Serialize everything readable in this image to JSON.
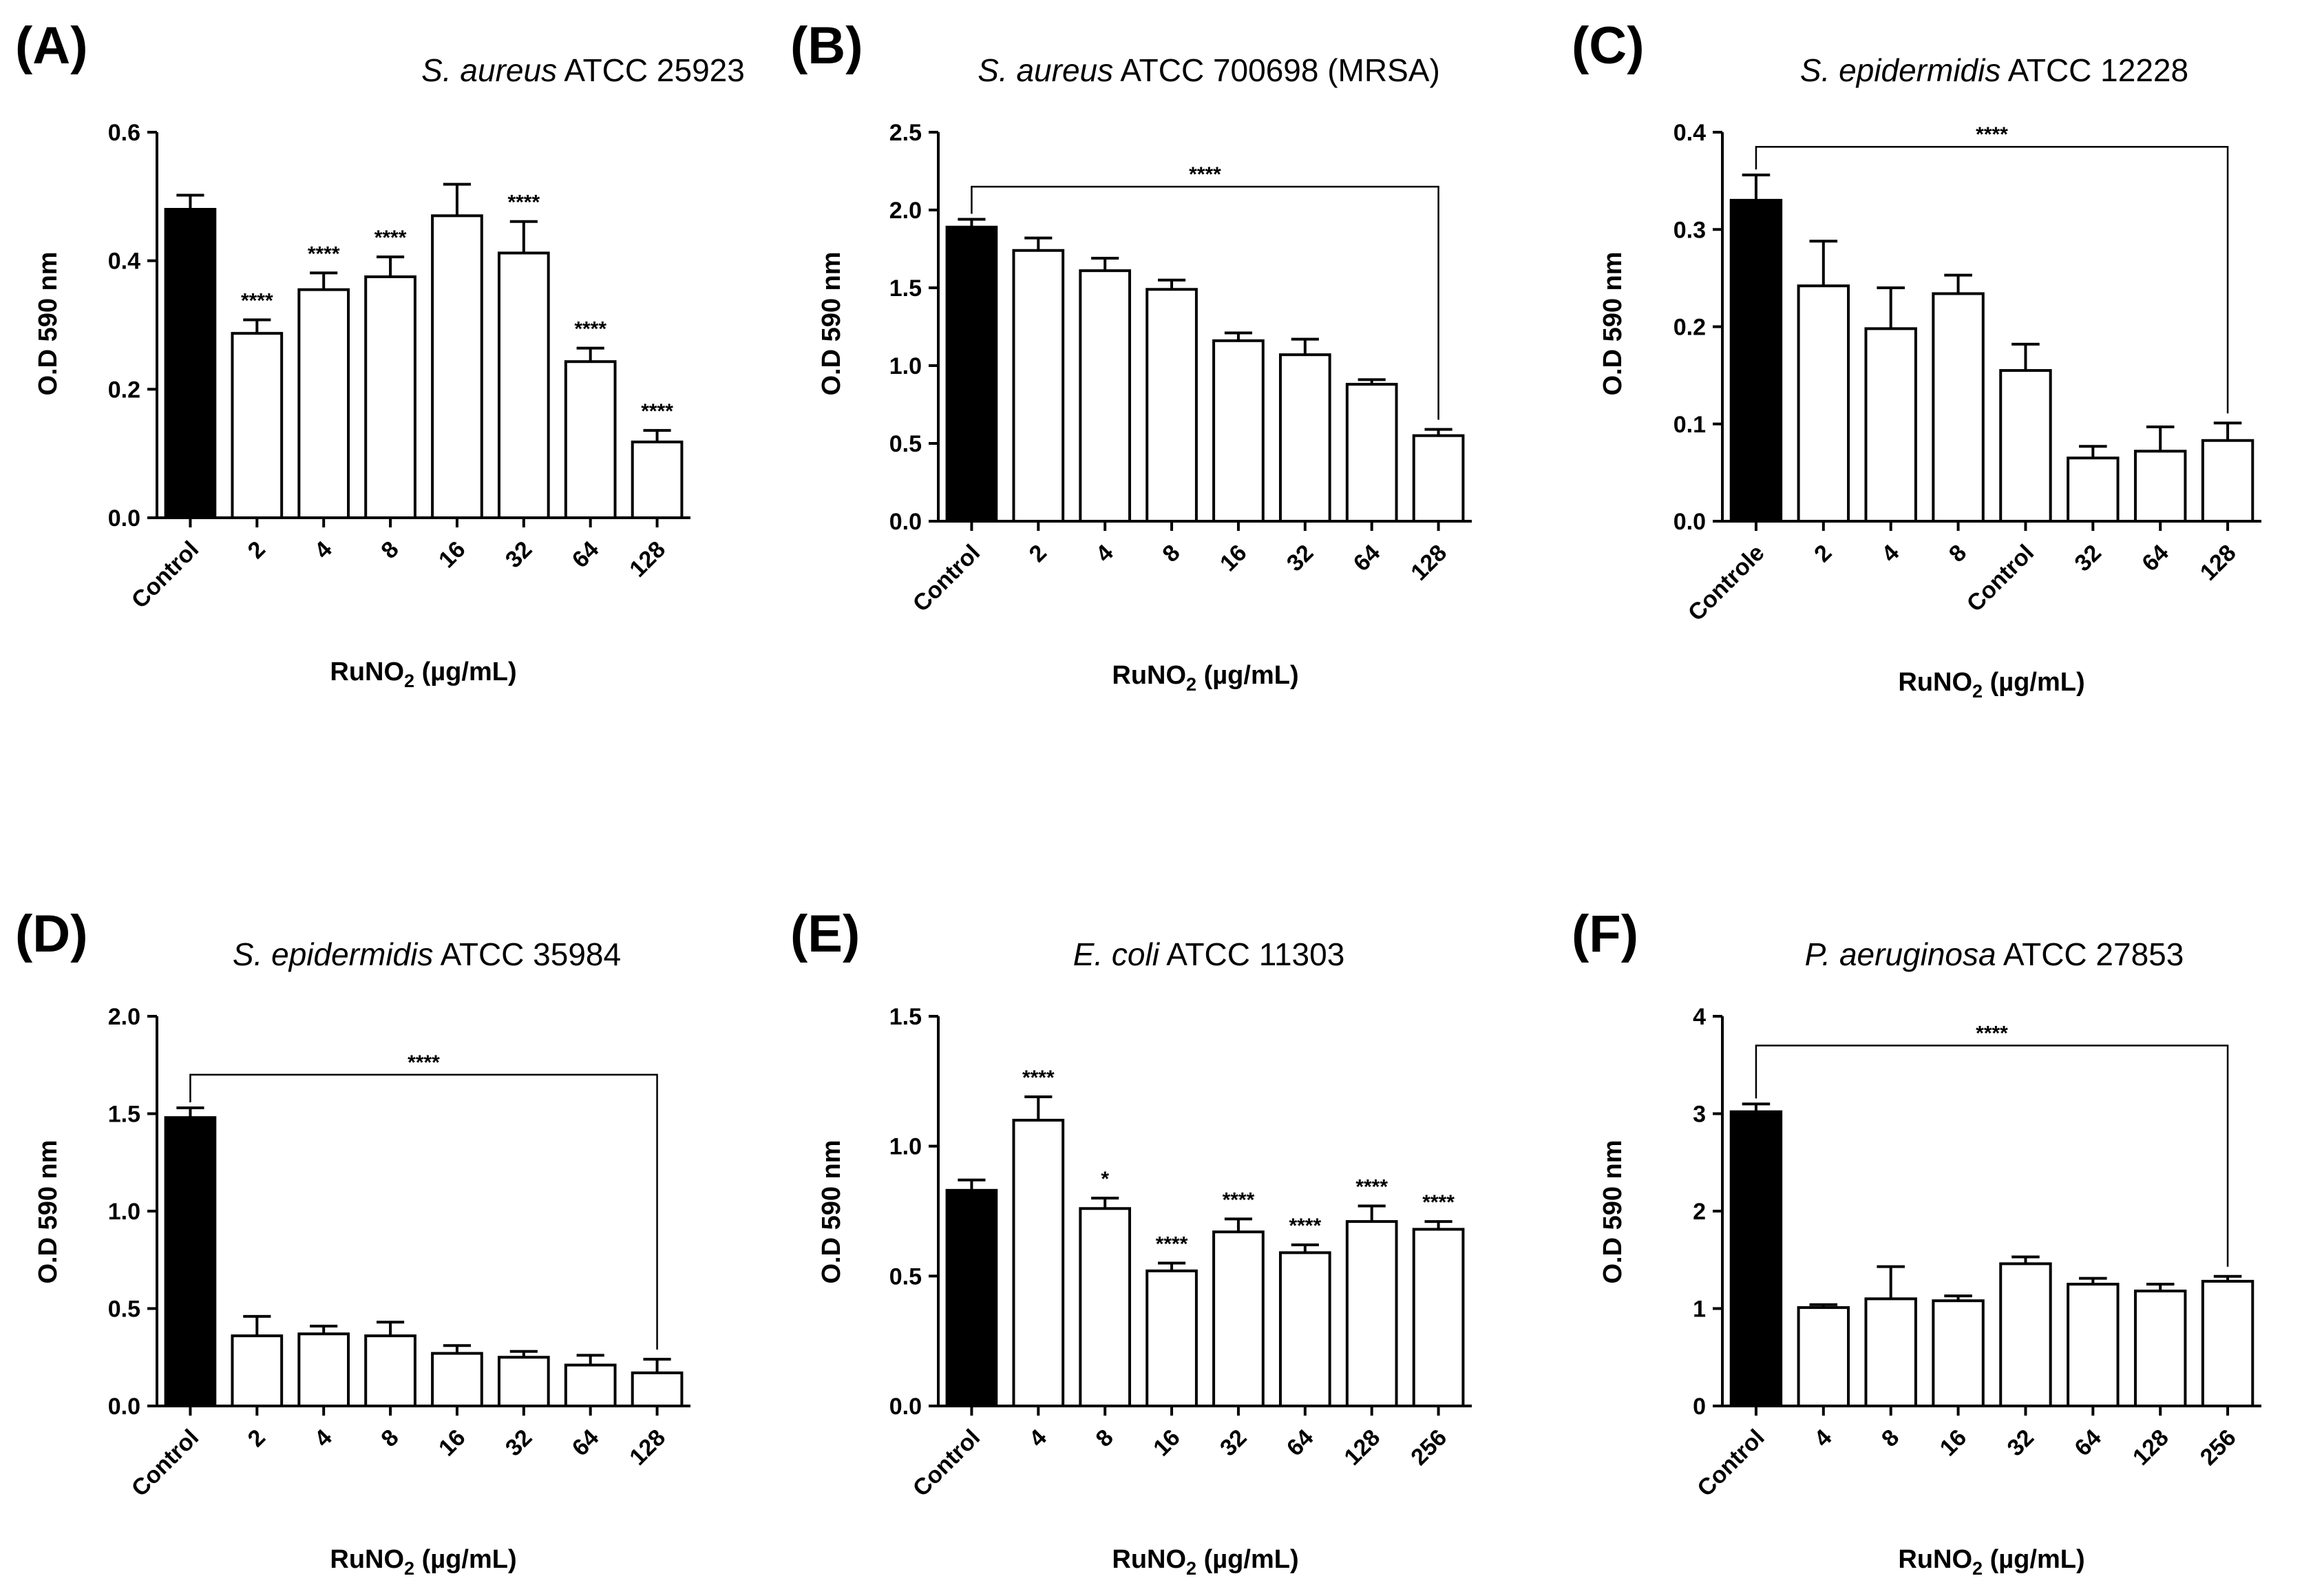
{
  "chart_data": [
    {
      "panel": "(A)",
      "type": "bar",
      "title": {
        "italic": "S. aureus",
        "rest": " ATCC 25923"
      },
      "ylabel": "O.D 590 nm",
      "xlabel": {
        "main": "RuNO",
        "sub": "2",
        "tail": " (µg/mL)"
      },
      "ylim": [
        0,
        0.6
      ],
      "yticks": [
        0,
        0.2,
        0.4,
        0.6
      ],
      "yticklabels": [
        "0.0",
        "0.2",
        "0.4",
        "0.6"
      ],
      "categories": [
        "Control",
        "2",
        "4",
        "8",
        "16",
        "32",
        "64",
        "128"
      ],
      "values": [
        0.48,
        0.287,
        0.355,
        0.375,
        0.47,
        0.412,
        0.243,
        0.118
      ],
      "errors": [
        0.022,
        0.021,
        0.026,
        0.031,
        0.049,
        0.049,
        0.021,
        0.018
      ],
      "fills": [
        "#000000",
        "#ffffff",
        "#ffffff",
        "#ffffff",
        "#ffffff",
        "#ffffff",
        "#ffffff",
        "#ffffff"
      ],
      "significance": [
        "",
        "****",
        "****",
        "****",
        "",
        "****",
        "****",
        "****"
      ],
      "bracket": null
    },
    {
      "panel": "(B)",
      "type": "bar",
      "title": {
        "italic": "S. aureus",
        "rest": " ATCC 700698 (MRSA)"
      },
      "ylabel": "O.D 590 nm",
      "xlabel": {
        "main": "RuNO",
        "sub": "2",
        "tail": " (µg/mL)"
      },
      "ylim": [
        0,
        2.5
      ],
      "yticks": [
        0,
        0.5,
        1,
        1.5,
        2,
        2.5
      ],
      "yticklabels": [
        "0.0",
        "0.5",
        "1.0",
        "1.5",
        "2.0",
        "2.5"
      ],
      "categories": [
        "Control",
        "2",
        "4",
        "8",
        "16",
        "32",
        "64",
        "128"
      ],
      "values": [
        1.89,
        1.74,
        1.61,
        1.49,
        1.16,
        1.07,
        0.88,
        0.55
      ],
      "errors": [
        0.05,
        0.08,
        0.08,
        0.06,
        0.05,
        0.1,
        0.03,
        0.04
      ],
      "fills": [
        "#000000",
        "#ffffff",
        "#ffffff",
        "#ffffff",
        "#ffffff",
        "#ffffff",
        "#ffffff",
        "#ffffff"
      ],
      "significance": [
        "",
        "",
        "",
        "",
        "",
        "",
        "",
        ""
      ],
      "bracket": {
        "from": 0,
        "to": 7,
        "level": 2.15,
        "label": "****"
      }
    },
    {
      "panel": "(C)",
      "type": "bar",
      "title": {
        "italic": "S. epidermidis",
        "rest": " ATCC 12228"
      },
      "ylabel": "O.D 590 nm",
      "xlabel": {
        "main": "RuNO",
        "sub": "2",
        "tail": " (µg/mL)"
      },
      "ylim": [
        0,
        0.4
      ],
      "yticks": [
        0,
        0.1,
        0.2,
        0.3,
        0.4
      ],
      "yticklabels": [
        "0.0",
        "0.1",
        "0.2",
        "0.3",
        "0.4"
      ],
      "categories": [
        "Controle",
        "2",
        "4",
        "8",
        "Control",
        "32",
        "64",
        "128"
      ],
      "values": [
        0.33,
        0.242,
        0.198,
        0.234,
        0.155,
        0.065,
        0.072,
        0.083
      ],
      "errors": [
        0.026,
        0.046,
        0.042,
        0.019,
        0.027,
        0.012,
        0.025,
        0.018
      ],
      "fills": [
        "#000000",
        "#ffffff",
        "#ffffff",
        "#ffffff",
        "#ffffff",
        "#ffffff",
        "#ffffff",
        "#ffffff"
      ],
      "significance": [
        "",
        "",
        "",
        "",
        "",
        "",
        "",
        ""
      ],
      "bracket": {
        "from": 0,
        "to": 7,
        "level": 0.385,
        "label": "****"
      }
    },
    {
      "panel": "(D)",
      "type": "bar",
      "title": {
        "italic": "S. epidermidis",
        "rest": " ATCC 35984"
      },
      "ylabel": "O.D 590 nm",
      "xlabel": {
        "main": "RuNO",
        "sub": "2",
        "tail": " (µg/mL)"
      },
      "ylim": [
        0,
        2.0
      ],
      "yticks": [
        0,
        0.5,
        1,
        1.5,
        2
      ],
      "yticklabels": [
        "0.0",
        "0.5",
        "1.0",
        "1.5",
        "2.0"
      ],
      "categories": [
        "Control",
        "2",
        "4",
        "8",
        "16",
        "32",
        "64",
        "128"
      ],
      "values": [
        1.48,
        0.36,
        0.37,
        0.36,
        0.27,
        0.25,
        0.21,
        0.17
      ],
      "errors": [
        0.05,
        0.1,
        0.04,
        0.07,
        0.04,
        0.03,
        0.05,
        0.07
      ],
      "fills": [
        "#000000",
        "#ffffff",
        "#ffffff",
        "#ffffff",
        "#ffffff",
        "#ffffff",
        "#ffffff",
        "#ffffff"
      ],
      "significance": [
        "",
        "",
        "",
        "",
        "",
        "",
        "",
        ""
      ],
      "bracket": {
        "from": 0,
        "to": 7,
        "level": 1.7,
        "label": "****"
      }
    },
    {
      "panel": "(E)",
      "type": "bar",
      "title": {
        "italic": "E. coli",
        "rest": " ATCC 11303"
      },
      "ylabel": "O.D 590 nm",
      "xlabel": {
        "main": "RuNO",
        "sub": "2",
        "tail": " (µg/mL)"
      },
      "ylim": [
        0,
        1.5
      ],
      "yticks": [
        0,
        0.5,
        1,
        1.5
      ],
      "yticklabels": [
        "0.0",
        "0.5",
        "1.0",
        "1.5"
      ],
      "categories": [
        "Control",
        "4",
        "8",
        "16",
        "32",
        "64",
        "128",
        "256"
      ],
      "values": [
        0.83,
        1.1,
        0.76,
        0.52,
        0.67,
        0.59,
        0.71,
        0.68
      ],
      "errors": [
        0.04,
        0.09,
        0.04,
        0.03,
        0.05,
        0.03,
        0.06,
        0.03
      ],
      "fills": [
        "#000000",
        "#ffffff",
        "#ffffff",
        "#ffffff",
        "#ffffff",
        "#ffffff",
        "#ffffff",
        "#ffffff"
      ],
      "significance": [
        "",
        "****",
        "*",
        "****",
        "****",
        "****",
        "****",
        "****"
      ],
      "bracket": null
    },
    {
      "panel": "(F)",
      "type": "bar",
      "title": {
        "italic": "P. aeruginosa",
        "rest": " ATCC 27853"
      },
      "ylabel": "O.D 590 nm",
      "xlabel": {
        "main": "RuNO",
        "sub": "2",
        "tail": " (µg/mL)"
      },
      "ylim": [
        0,
        4
      ],
      "yticks": [
        0,
        1,
        2,
        3,
        4
      ],
      "yticklabels": [
        "0",
        "1",
        "2",
        "3",
        "4"
      ],
      "categories": [
        "Control",
        "4",
        "8",
        "16",
        "32",
        "64",
        "128",
        "256"
      ],
      "values": [
        3.02,
        1.01,
        1.1,
        1.08,
        1.46,
        1.25,
        1.18,
        1.28
      ],
      "errors": [
        0.08,
        0.03,
        0.33,
        0.05,
        0.07,
        0.06,
        0.07,
        0.05
      ],
      "fills": [
        "#000000",
        "#ffffff",
        "#ffffff",
        "#ffffff",
        "#ffffff",
        "#ffffff",
        "#ffffff",
        "#ffffff"
      ],
      "significance": [
        "",
        "",
        "",
        "",
        "",
        "",
        "",
        ""
      ],
      "bracket": {
        "from": 0,
        "to": 7,
        "level": 3.7,
        "label": "****"
      }
    }
  ]
}
